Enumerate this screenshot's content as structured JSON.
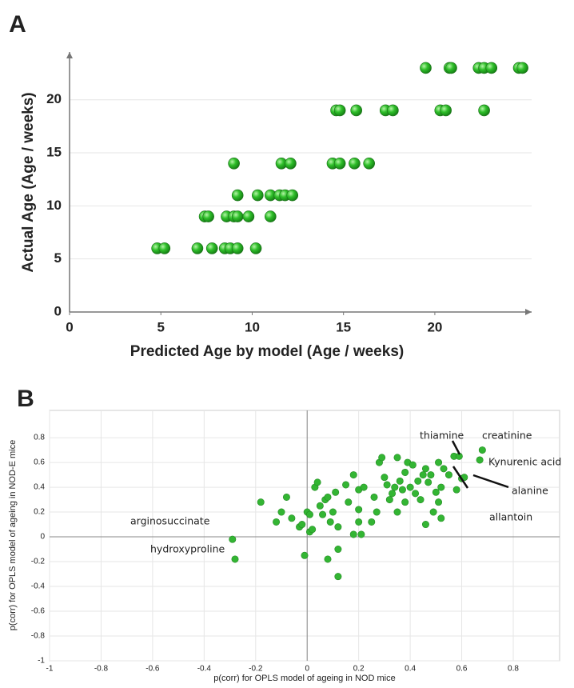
{
  "chart_data": [
    {
      "type": "scatter",
      "panel_label": "A",
      "x_label": "Predicted Age by model (Age / weeks)",
      "y_label": "Actual Age (Age / weeks)",
      "color": "#2db82d",
      "grid": "y",
      "xlim": [
        0,
        25.3
      ],
      "ylim": [
        0,
        24.5
      ],
      "xticks": [
        0,
        5,
        10,
        15,
        20
      ],
      "yticks": [
        0,
        5,
        10,
        15,
        20
      ],
      "x": [
        4.8,
        5.2,
        7.0,
        7.8,
        8.5,
        8.8,
        9.2,
        10.2,
        7.4,
        7.6,
        8.6,
        9.0,
        9.2,
        9.8,
        11.0,
        9.2,
        10.3,
        11.0,
        11.5,
        11.8,
        12.2,
        9.0,
        11.6,
        12.1,
        14.4,
        14.8,
        15.6,
        16.4,
        14.6,
        14.8,
        15.7,
        17.3,
        17.7,
        20.3,
        20.6,
        22.7,
        19.5,
        20.8,
        20.9,
        22.4,
        22.7,
        23.1,
        24.6,
        24.8
      ],
      "y": [
        6,
        6,
        6,
        6,
        6,
        6,
        6,
        6,
        9,
        9,
        9,
        9,
        9,
        9,
        9,
        11,
        11,
        11,
        11,
        11,
        11,
        14,
        14,
        14,
        14,
        14,
        14,
        14,
        19,
        19,
        19,
        19,
        19,
        19,
        19,
        19,
        23,
        23,
        23,
        23,
        23,
        23,
        23,
        23
      ]
    },
    {
      "type": "scatter",
      "panel_label": "B",
      "x_label": "p(corr) for OPLS model of ageing in NOD mice",
      "y_label": "p(corr) for OPLS model of ageing in NOD-E mice",
      "color": "#33b533",
      "grid": "both",
      "zero_lines": true,
      "xlim": [
        -1,
        0.98
      ],
      "ylim": [
        -1,
        1.02
      ],
      "xticks": [
        -1,
        -0.8,
        -0.6,
        -0.4,
        -0.2,
        0,
        0.2,
        0.4,
        0.6,
        0.8
      ],
      "yticks": [
        -1,
        -0.8,
        -0.6,
        -0.4,
        -0.2,
        0,
        0.2,
        0.4,
        0.6,
        0.8
      ],
      "annotations": [
        {
          "text": "thiamine"
        },
        {
          "text": "creatinine"
        },
        {
          "text": "Kynurenic acid"
        },
        {
          "text": "alanine"
        },
        {
          "text": "allantoin"
        },
        {
          "text": "arginosuccinate"
        },
        {
          "text": "hydroxyproline"
        }
      ],
      "x": [
        -0.29,
        -0.28,
        -0.18,
        -0.12,
        -0.1,
        -0.08,
        -0.06,
        -0.03,
        -0.02,
        0,
        0.01,
        0.02,
        0.01,
        0.03,
        0.04,
        0.05,
        0.06,
        0.07,
        0.08,
        0.09,
        0.1,
        0.11,
        0.12,
        0.12,
        0.12,
        0.08,
        -0.01,
        0.15,
        0.16,
        0.18,
        0.18,
        0.2,
        0.21,
        0.2,
        0.2,
        0.22,
        0.25,
        0.26,
        0.27,
        0.28,
        0.29,
        0.3,
        0.31,
        0.32,
        0.33,
        0.34,
        0.35,
        0.35,
        0.36,
        0.37,
        0.38,
        0.38,
        0.39,
        0.4,
        0.41,
        0.42,
        0.43,
        0.44,
        0.45,
        0.46,
        0.46,
        0.47,
        0.48,
        0.49,
        0.5,
        0.51,
        0.51,
        0.52,
        0.52,
        0.53,
        0.55,
        0.57,
        0.58,
        0.59,
        0.6,
        0.61,
        0.67,
        0.68
      ],
      "y": [
        -0.02,
        -0.18,
        0.28,
        0.12,
        0.2,
        0.32,
        0.15,
        0.08,
        0.1,
        0.2,
        0.04,
        0.06,
        0.18,
        0.4,
        0.44,
        0.25,
        0.18,
        0.3,
        0.32,
        0.12,
        0.2,
        0.36,
        0.08,
        -0.1,
        -0.32,
        -0.18,
        -0.15,
        0.42,
        0.28,
        0.5,
        0.02,
        0.22,
        0.02,
        0.12,
        0.38,
        0.4,
        0.12,
        0.32,
        0.2,
        0.6,
        0.64,
        0.48,
        0.42,
        0.3,
        0.35,
        0.4,
        0.64,
        0.2,
        0.45,
        0.38,
        0.52,
        0.28,
        0.6,
        0.4,
        0.58,
        0.35,
        0.45,
        0.3,
        0.5,
        0.55,
        0.1,
        0.44,
        0.5,
        0.2,
        0.36,
        0.6,
        0.28,
        0.4,
        0.15,
        0.55,
        0.5,
        0.65,
        0.38,
        0.65,
        0.47,
        0.48,
        0.62,
        0.7
      ]
    }
  ]
}
